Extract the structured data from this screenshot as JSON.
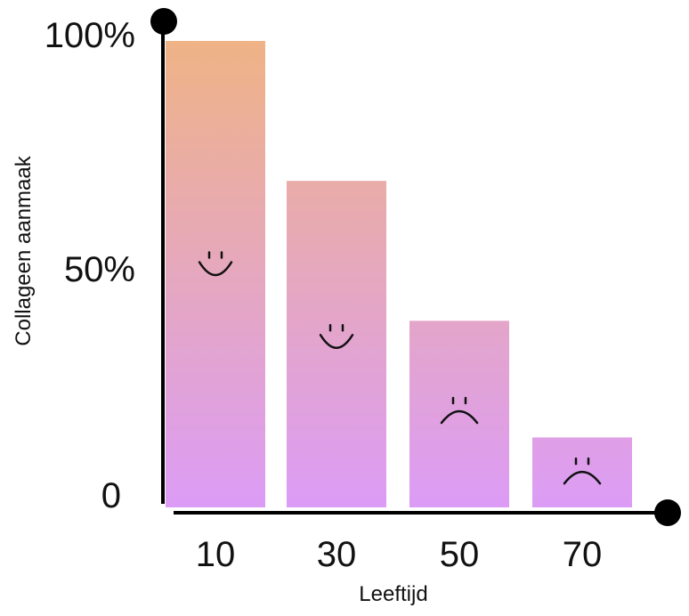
{
  "chart_data": {
    "type": "bar",
    "categories": [
      "10",
      "30",
      "50",
      "70"
    ],
    "values": [
      100,
      70,
      40,
      15
    ],
    "xlabel": "Leeftijd",
    "ylabel": "Collageen aanmaak",
    "ylim": [
      0,
      100
    ],
    "y_ticks": [
      "0",
      "50%",
      "100%"
    ],
    "grid": false,
    "legend": "none",
    "bar_faces": [
      "smile",
      "smile",
      "frown",
      "frown"
    ],
    "colors": {
      "bar_gradient_top": "#efb386",
      "bar_gradient_bottom": "#dc9cf6",
      "axis": "#000000",
      "text": "#111111"
    }
  }
}
